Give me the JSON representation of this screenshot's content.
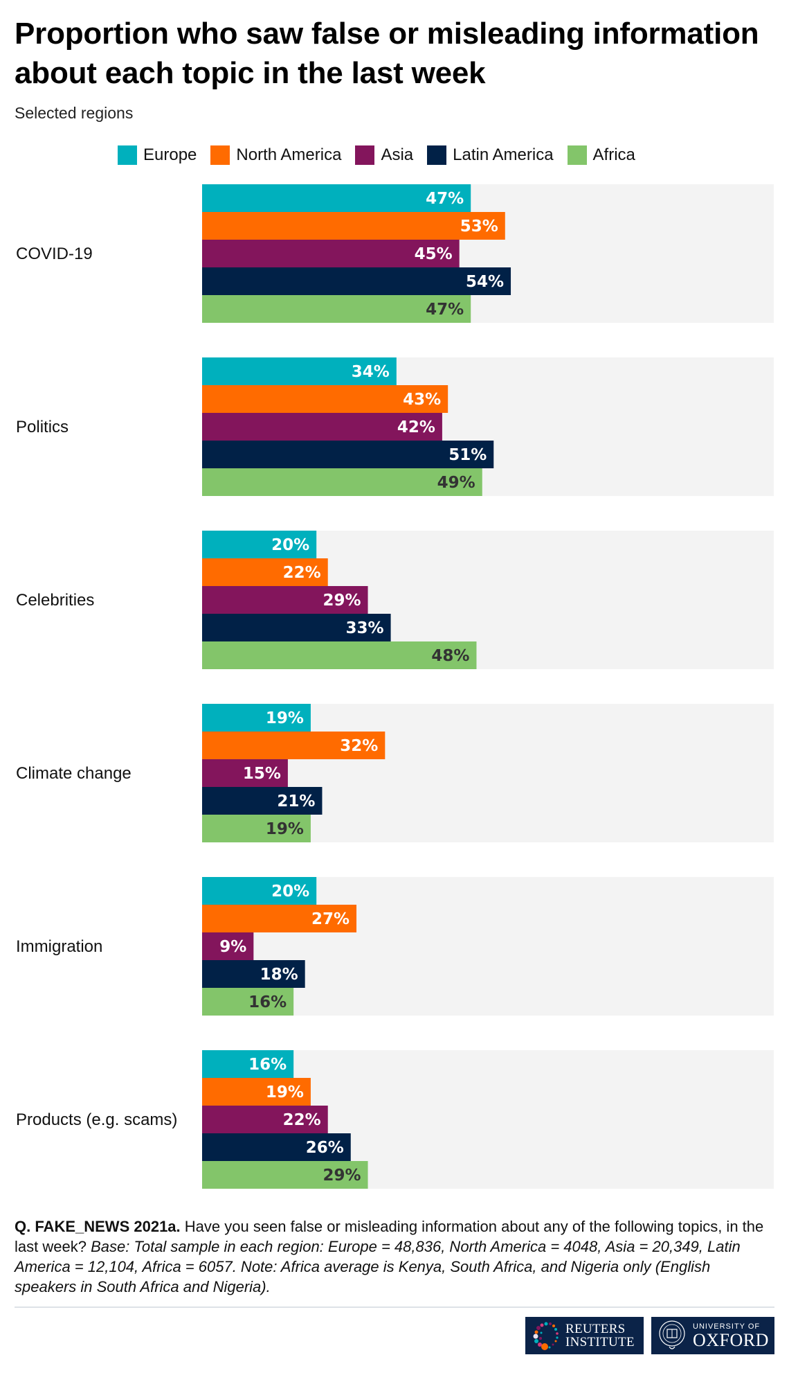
{
  "header": {
    "title_line1": "Proportion who saw false or misleading information",
    "title_line2": "about each topic in the last week",
    "subtitle": "Selected regions"
  },
  "legend": [
    {
      "label": "Europe",
      "color": "#00b0bd"
    },
    {
      "label": "North America",
      "color": "#ff6b00"
    },
    {
      "label": "Asia",
      "color": "#83155c"
    },
    {
      "label": "Latin America",
      "color": "#012147"
    },
    {
      "label": "Africa",
      "color": "#83c56a"
    }
  ],
  "chart_data": {
    "type": "bar",
    "orientation": "horizontal",
    "title": "Proportion who saw false or misleading information about each topic in the last week",
    "subtitle": "Selected regions",
    "xlabel": "",
    "ylabel": "",
    "xlim": [
      0,
      100
    ],
    "unit": "%",
    "grid": false,
    "legend_position": "top",
    "background_track_color": "#f3f3f3",
    "categories": [
      "COVID-19",
      "Politics",
      "Celebrities",
      "Climate change",
      "Immigration",
      "Products (e.g. scams)"
    ],
    "series": [
      {
        "name": "Europe",
        "color": "#00b0bd",
        "label_color": "#ffffff",
        "values": [
          47,
          34,
          20,
          19,
          20,
          16
        ]
      },
      {
        "name": "North America",
        "color": "#ff6b00",
        "label_color": "#ffffff",
        "values": [
          53,
          43,
          22,
          32,
          27,
          19
        ]
      },
      {
        "name": "Asia",
        "color": "#83155c",
        "label_color": "#ffffff",
        "values": [
          45,
          42,
          29,
          15,
          9,
          22
        ]
      },
      {
        "name": "Latin America",
        "color": "#012147",
        "label_color": "#ffffff",
        "values": [
          54,
          51,
          33,
          21,
          18,
          26
        ]
      },
      {
        "name": "Africa",
        "color": "#83c56a",
        "label_color": "#333333",
        "values": [
          47,
          49,
          48,
          19,
          16,
          29
        ]
      }
    ]
  },
  "footnote": {
    "question_bold": "Q. FAKE_NEWS 2021a.",
    "question_text": " Have you seen false or misleading information about any of the following topics, in the last week? ",
    "base_italic": "Base: Total sample in each region: Europe = 48,836, North America = 4048, Asia = 20,349, Latin America = 12,104, Africa = 6057. Note: Africa average is Kenya, South Africa, and Nigeria only (English speakers in South Africa and Nigeria)."
  },
  "logos": {
    "reuters_line1": "REUTERS",
    "reuters_line2": "INSTITUTE",
    "oxford_line1": "UNIVERSITY OF",
    "oxford_line2": "OXFORD"
  }
}
